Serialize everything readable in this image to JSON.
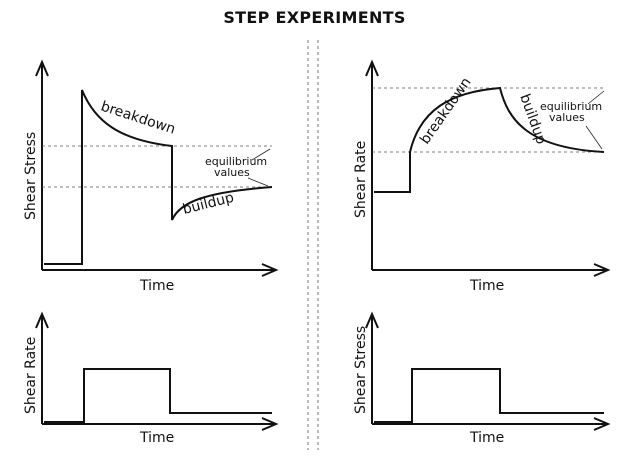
{
  "title": "STEP EXPERIMENTS",
  "panels": {
    "top_left": {
      "ylabel": "Shear Stress",
      "xlabel": "Time",
      "breakdown": "breakdown",
      "buildup": "buildup",
      "equilibrium_line1": "equilibrium",
      "equilibrium_line2": "values"
    },
    "top_right": {
      "ylabel": "Shear Rate",
      "xlabel": "Time",
      "breakdown": "breakdown",
      "buildup": "buildup",
      "equilibrium_line1": "equilibrium",
      "equilibrium_line2": "values"
    },
    "bottom_left": {
      "ylabel": "Shear Rate",
      "xlabel": "Time"
    },
    "bottom_right": {
      "ylabel": "Shear Stress",
      "xlabel": "Time"
    }
  }
}
